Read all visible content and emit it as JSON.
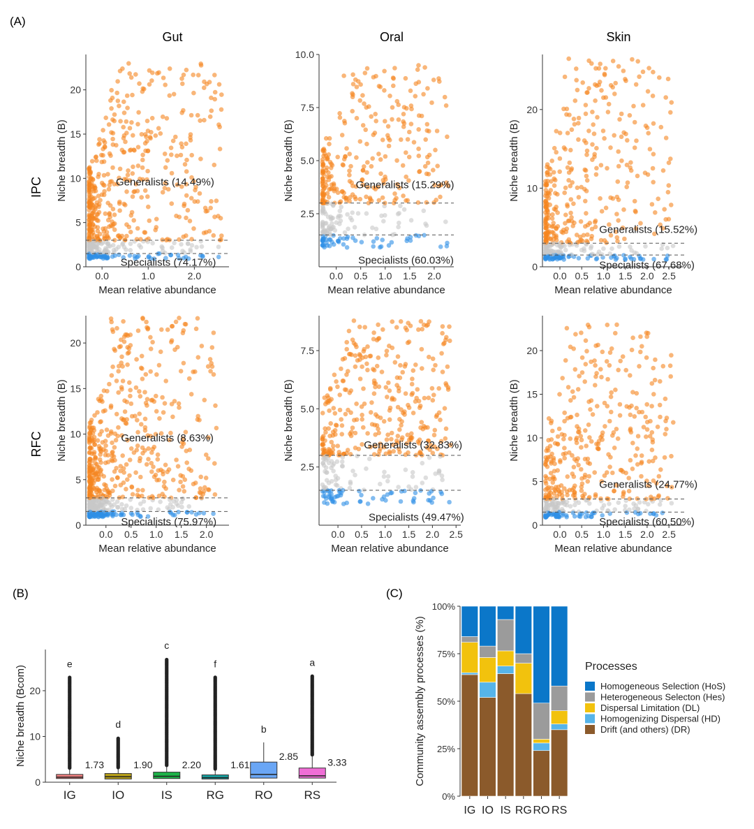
{
  "colors": {
    "generalist": "#f5861f",
    "intermediate": "#c8c8c8",
    "specialist": "#2f8fe6",
    "axis": "#333333",
    "dash": "#555555",
    "box_IG": "#f08080",
    "box_IO": "#b8a018",
    "box_IS": "#1db348",
    "box_RG": "#17a3a3",
    "box_RO": "#6aa6f5",
    "box_RS": "#f06ed6",
    "proc_HoS": "#0b77c9",
    "proc_Hes": "#9b9b9b",
    "proc_DL": "#f2c20d",
    "proc_HD": "#56b4e9",
    "proc_DR": "#8b5a2b"
  },
  "panel_a": {
    "label": "(A)",
    "columns": [
      "Gut",
      "Oral",
      "Skin"
    ],
    "rows": [
      "IPC",
      "RFC"
    ]
  },
  "panel_b": {
    "label": "(B)"
  },
  "panel_c": {
    "label": "(C)"
  },
  "chart_data": [
    {
      "id": "IPC-Gut",
      "type": "scatter",
      "title": "Gut",
      "xlabel": "Mean relative abundance",
      "ylabel": "Niche breadth (B)",
      "xlim": [
        -0.35,
        2.75
      ],
      "ylim": [
        0,
        24
      ],
      "xticks": [
        0.0,
        1.0,
        2.0
      ],
      "xtick_labels": [
        "0.0",
        "1.0",
        "2.0"
      ],
      "yticks": [
        0,
        5,
        10,
        15,
        20
      ],
      "ytick_labels": [
        "0",
        "5",
        "10",
        "15",
        "20"
      ],
      "thresholds": [
        3.0,
        1.5
      ],
      "generalists_label": "Generalists (14.49%)",
      "generalists_pos": [
        0.3,
        9.2
      ],
      "specialists_label": "Specialists (74.17%)",
      "specialists_pos": [
        0.4,
        0.1
      ],
      "points": {
        "count": 700,
        "xmax": 2.6,
        "ymax": 23,
        "seed": 11,
        "dens": 3.0
      }
    },
    {
      "id": "IPC-Oral",
      "type": "scatter",
      "title": "Oral",
      "xlabel": "Mean relative abundance",
      "ylabel": "Niche breadth (B)",
      "xlim": [
        -0.35,
        2.4
      ],
      "ylim": [
        0,
        10
      ],
      "xticks": [
        0.0,
        0.5,
        1.0,
        1.5,
        2.0
      ],
      "xtick_labels": [
        "0.0",
        "0.5",
        "1.0",
        "1.5",
        "2.0"
      ],
      "yticks": [
        2.5,
        5.0,
        7.5,
        10.0
      ],
      "ytick_labels": [
        "2.5",
        "5.0",
        "7.5",
        "10.0"
      ],
      "thresholds": [
        3.0,
        1.5
      ],
      "generalists_label": "Generalists (15.29%)",
      "generalists_pos": [
        0.4,
        3.7
      ],
      "specialists_label": "Specialists (60.03%)",
      "specialists_pos": [
        0.45,
        0.15
      ],
      "points": {
        "count": 420,
        "xmax": 2.3,
        "ymax": 9.6,
        "seed": 23,
        "dens": 2.2
      }
    },
    {
      "id": "IPC-Skin",
      "type": "scatter",
      "title": "Skin",
      "xlabel": "Mean relative abundance",
      "ylabel": "Niche breadth (B)",
      "xlim": [
        -0.4,
        2.85
      ],
      "ylim": [
        0,
        27
      ],
      "xticks": [
        0.0,
        0.5,
        1.0,
        1.5,
        2.0,
        2.5
      ],
      "xtick_labels": [
        "0.0",
        "0.5",
        "1.0",
        "1.5",
        "2.0",
        "2.5"
      ],
      "yticks": [
        0,
        10,
        20
      ],
      "ytick_labels": [
        "0",
        "10",
        "20"
      ],
      "thresholds": [
        3.0,
        1.5
      ],
      "generalists_label": "Generalists (15.52%)",
      "generalists_pos": [
        0.9,
        4.3
      ],
      "specialists_label": "Specialists (67.68%)",
      "specialists_pos": [
        0.9,
        -0.2
      ],
      "points": {
        "count": 520,
        "xmax": 2.6,
        "ymax": 26.5,
        "seed": 37,
        "dens": 2.4
      }
    },
    {
      "id": "RFC-Gut",
      "type": "scatter",
      "title": "",
      "xlabel": "Mean relative abundance",
      "ylabel": "Niche breadth (B)",
      "xlim": [
        -0.4,
        2.45
      ],
      "ylim": [
        0,
        23
      ],
      "xticks": [
        0.0,
        0.5,
        1.0,
        1.5,
        2.0
      ],
      "xtick_labels": [
        "0.0",
        "0.5",
        "1.0",
        "1.5",
        "2.0"
      ],
      "yticks": [
        0,
        5,
        10,
        15,
        20
      ],
      "ytick_labels": [
        "0",
        "5",
        "10",
        "15",
        "20"
      ],
      "thresholds": [
        3.0,
        1.5
      ],
      "generalists_label": "Generalists (8.63%)",
      "generalists_pos": [
        0.3,
        9.2
      ],
      "specialists_label": "Specialists (75.97%)",
      "specialists_pos": [
        0.3,
        0.0
      ],
      "points": {
        "count": 750,
        "xmax": 2.2,
        "ymax": 23,
        "seed": 51,
        "dens": 3.0
      }
    },
    {
      "id": "RFC-Oral",
      "type": "scatter",
      "title": "",
      "xlabel": "Mean relative abundance",
      "ylabel": "Niche breadth (B)",
      "xlim": [
        -0.4,
        2.6
      ],
      "ylim": [
        0,
        9
      ],
      "xticks": [
        0.0,
        0.5,
        1.0,
        1.5,
        2.0,
        2.5
      ],
      "xtick_labels": [
        "0.0",
        "0.5",
        "1.0",
        "1.5",
        "2.0",
        "2.5"
      ],
      "yticks": [
        2.5,
        5.0,
        7.5
      ],
      "ytick_labels": [
        "2.5",
        "5.0",
        "7.5"
      ],
      "thresholds": [
        3.0,
        1.5
      ],
      "generalists_label": "Generalists (32.83%)",
      "generalists_pos": [
        0.55,
        3.3
      ],
      "specialists_label": "Specialists (49.47%)",
      "specialists_pos": [
        0.65,
        0.2
      ],
      "points": {
        "count": 460,
        "xmax": 2.4,
        "ymax": 8.8,
        "seed": 67,
        "dens": 1.4
      }
    },
    {
      "id": "RFC-Skin",
      "type": "scatter",
      "title": "",
      "xlabel": "Mean relative abundance",
      "ylabel": "Niche breadth (B)",
      "xlim": [
        -0.4,
        2.85
      ],
      "ylim": [
        0,
        24
      ],
      "xticks": [
        0.0,
        0.5,
        1.0,
        1.5,
        2.0,
        2.5
      ],
      "xtick_labels": [
        "0.0",
        "0.5",
        "1.0",
        "1.5",
        "2.0",
        "2.5"
      ],
      "yticks": [
        0,
        5,
        10,
        15,
        20
      ],
      "ytick_labels": [
        "0",
        "5",
        "10",
        "15",
        "20"
      ],
      "thresholds": [
        3.0,
        1.5
      ],
      "generalists_label": "Generalists (24.77%)",
      "generalists_pos": [
        0.9,
        4.3
      ],
      "specialists_label": "Specialists (60.50%)",
      "specialists_pos": [
        0.9,
        0.0
      ],
      "points": {
        "count": 500,
        "xmax": 2.6,
        "ymax": 23,
        "seed": 83,
        "dens": 1.8
      }
    },
    {
      "id": "B",
      "type": "box",
      "ylabel": "Niche breadth (Bcom)",
      "ylim": [
        0,
        29
      ],
      "yticks": [
        0,
        10,
        20
      ],
      "ytick_labels": [
        "0",
        "10",
        "20"
      ],
      "categories": [
        "IG",
        "IO",
        "IS",
        "RG",
        "RO",
        "RS"
      ],
      "boxes": [
        {
          "name": "IG",
          "q1": 0.8,
          "median": 1.1,
          "q3": 1.7,
          "whisker_high": 2.9,
          "outlier_max": 23.0,
          "mean_label": "1.73",
          "letter": "e"
        },
        {
          "name": "IO",
          "q1": 0.7,
          "median": 1.2,
          "q3": 1.9,
          "whisker_high": 3.0,
          "outlier_max": 9.8,
          "mean_label": "1.90",
          "letter": "d"
        },
        {
          "name": "IS",
          "q1": 0.8,
          "median": 1.3,
          "q3": 2.2,
          "whisker_high": 3.5,
          "outlier_max": 27.0,
          "mean_label": "2.20",
          "letter": "c"
        },
        {
          "name": "RG",
          "q1": 0.7,
          "median": 1.0,
          "q3": 1.6,
          "whisker_high": 2.7,
          "outlier_max": 23.0,
          "mean_label": "1.61",
          "letter": "f"
        },
        {
          "name": "RO",
          "q1": 0.9,
          "median": 1.7,
          "q3": 4.4,
          "whisker_high": 8.7,
          "outlier_max": null,
          "mean_label": "2.85",
          "letter": "b"
        },
        {
          "name": "RS",
          "q1": 0.9,
          "median": 1.4,
          "q3": 3.1,
          "whisker_high": 5.8,
          "outlier_max": 23.3,
          "mean_label": "3.33",
          "letter": "a"
        }
      ]
    },
    {
      "id": "C",
      "type": "stacked-bar",
      "ylabel": "Community assembly processes (%)",
      "ylim": [
        0,
        100
      ],
      "yticks": [
        0,
        25,
        50,
        75,
        100
      ],
      "ytick_labels": [
        "0%",
        "25%",
        "50%",
        "75%",
        "100%"
      ],
      "categories": [
        "IG",
        "IO",
        "IS",
        "RG",
        "RO",
        "RS"
      ],
      "legend_title": "Processes",
      "legend": [
        {
          "key": "HoS",
          "label": "Homogeneous Selection (HoS)"
        },
        {
          "key": "Hes",
          "label": "Heterogeneous Selecton (Hes)"
        },
        {
          "key": "DL",
          "label": "Dispersal Limitation (DL)"
        },
        {
          "key": "HD",
          "label": "Homogenizing Dispersal (HD)"
        },
        {
          "key": "DR",
          "label": "Drift (and others) (DR)"
        }
      ],
      "series": [
        {
          "key": "DR",
          "values": [
            64,
            52,
            64.5,
            54,
            24,
            35
          ]
        },
        {
          "key": "HD",
          "values": [
            1,
            8,
            4,
            0,
            4,
            3
          ]
        },
        {
          "key": "DL",
          "values": [
            16,
            13,
            8,
            16,
            2,
            7
          ]
        },
        {
          "key": "Hes",
          "values": [
            3,
            6,
            16.5,
            5,
            19,
            13
          ]
        },
        {
          "key": "HoS",
          "values": [
            16,
            21,
            7,
            25,
            51,
            42
          ]
        }
      ]
    }
  ]
}
